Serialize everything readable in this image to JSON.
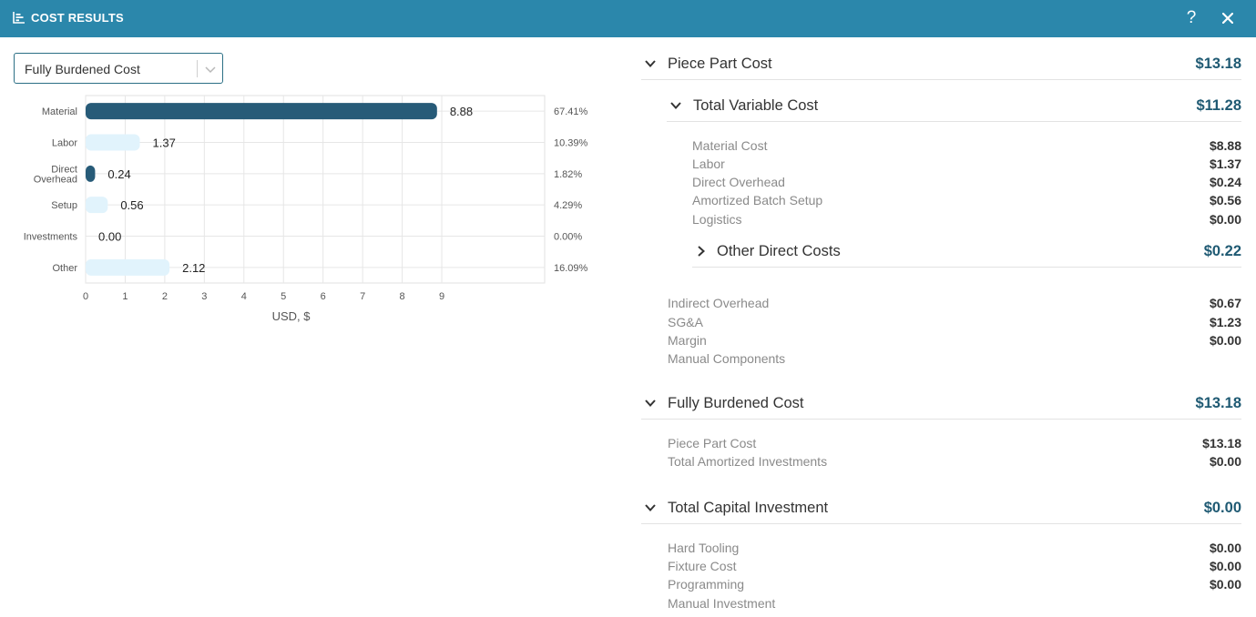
{
  "window": {
    "title": "COST RESULTS",
    "title_icon": "bar-chart-icon",
    "help_label": "?",
    "close_icon": "close-icon"
  },
  "selector": {
    "value": "Fully Burdened Cost",
    "arrow_icon": "chevron-down-icon"
  },
  "chart_data": {
    "type": "bar",
    "orientation": "horizontal",
    "categories": [
      "Material",
      "Labor",
      "Direct Overhead",
      "Setup",
      "Investments",
      "Other"
    ],
    "category_lines": [
      [
        "Material"
      ],
      [
        "Labor"
      ],
      [
        "Direct",
        "Overhead"
      ],
      [
        "Setup"
      ],
      [
        "Investments"
      ],
      [
        "Other"
      ]
    ],
    "values": [
      8.88,
      1.37,
      0.24,
      0.56,
      0.0,
      2.12
    ],
    "value_labels": [
      "8.88",
      "1.37",
      "0.24",
      "0.56",
      "0.00",
      "2.12"
    ],
    "percent_labels": [
      "67.41%",
      "10.39%",
      "1.82%",
      "4.29%",
      "0.00%",
      "16.09%"
    ],
    "bar_colors": [
      "#275b78",
      "#e1f3fc",
      "#275b78",
      "#e1f3fc",
      "#e1f3fc",
      "#e1f3fc"
    ],
    "x_ticks": [
      0,
      1,
      2,
      3,
      4,
      5,
      6,
      7,
      8,
      9
    ],
    "xlim": [
      0,
      11.6
    ],
    "xlabel": "USD, $",
    "grid": true
  },
  "sections": {
    "piece_part": {
      "label": "Piece Part Cost",
      "value": "$13.18",
      "variable": {
        "label": "Total Variable Cost",
        "value": "$11.28",
        "items": [
          {
            "label": "Material Cost",
            "value": "$8.88"
          },
          {
            "label": "Labor",
            "value": "$1.37"
          },
          {
            "label": "Direct Overhead",
            "value": "$0.24"
          },
          {
            "label": "Amortized Batch Setup",
            "value": "$0.56"
          },
          {
            "label": "Logistics",
            "value": "$0.00"
          }
        ],
        "other_direct": {
          "label": "Other Direct Costs",
          "value": "$0.22"
        }
      },
      "items": [
        {
          "label": "Indirect Overhead",
          "value": "$0.67"
        },
        {
          "label": "SG&A",
          "value": "$1.23"
        },
        {
          "label": "Margin",
          "value": "$0.00"
        },
        {
          "label": "Manual Components",
          "value": ""
        }
      ]
    },
    "fully_burdened": {
      "label": "Fully Burdened Cost",
      "value": "$13.18",
      "items": [
        {
          "label": "Piece Part Cost",
          "value": "$13.18"
        },
        {
          "label": "Total Amortized Investments",
          "value": "$0.00"
        }
      ]
    },
    "capital": {
      "label": "Total Capital Investment",
      "value": "$0.00",
      "items": [
        {
          "label": "Hard Tooling",
          "value": "$0.00"
        },
        {
          "label": "Fixture Cost",
          "value": "$0.00"
        },
        {
          "label": "Programming",
          "value": "$0.00"
        },
        {
          "label": "Manual Investment",
          "value": ""
        }
      ]
    }
  }
}
